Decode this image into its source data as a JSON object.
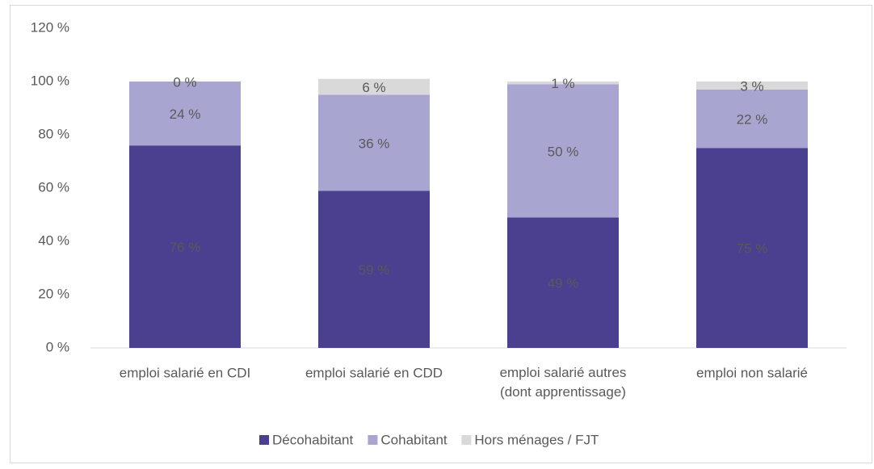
{
  "chart_data": {
    "type": "stacked-bar",
    "categories": [
      "emploi salarié en CDI",
      "emploi salarié en CDD",
      "emploi salarié autres\n(dont apprentissage)",
      "emploi non salarié"
    ],
    "series": [
      {
        "name": "Décohabitant",
        "color": "#4b3f8f",
        "values": [
          76,
          59,
          49,
          75
        ],
        "value_labels": [
          "76 %",
          "59 %",
          "49 %",
          "75 %"
        ]
      },
      {
        "name": "Cohabitant",
        "color": "#a9a5d1",
        "values": [
          24,
          36,
          50,
          22
        ],
        "value_labels": [
          "24 %",
          "36 %",
          "50 %",
          "22 %"
        ]
      },
      {
        "name": "Hors ménages / FJT",
        "color": "#d9d9d9",
        "values": [
          0,
          6,
          1,
          3
        ],
        "value_labels": [
          "0 %",
          "6 %",
          "1 %",
          "3 %"
        ]
      }
    ],
    "ylim": [
      0,
      120
    ],
    "yticks": [
      {
        "value": 0,
        "label": "0 %"
      },
      {
        "value": 20,
        "label": "20 %"
      },
      {
        "value": 40,
        "label": "40 %"
      },
      {
        "value": 60,
        "label": "60 %"
      },
      {
        "value": 80,
        "label": "80 %"
      },
      {
        "value": 100,
        "label": "100 %"
      },
      {
        "value": 120,
        "label": "120 %"
      }
    ],
    "grid": false,
    "legend": "bottom"
  }
}
